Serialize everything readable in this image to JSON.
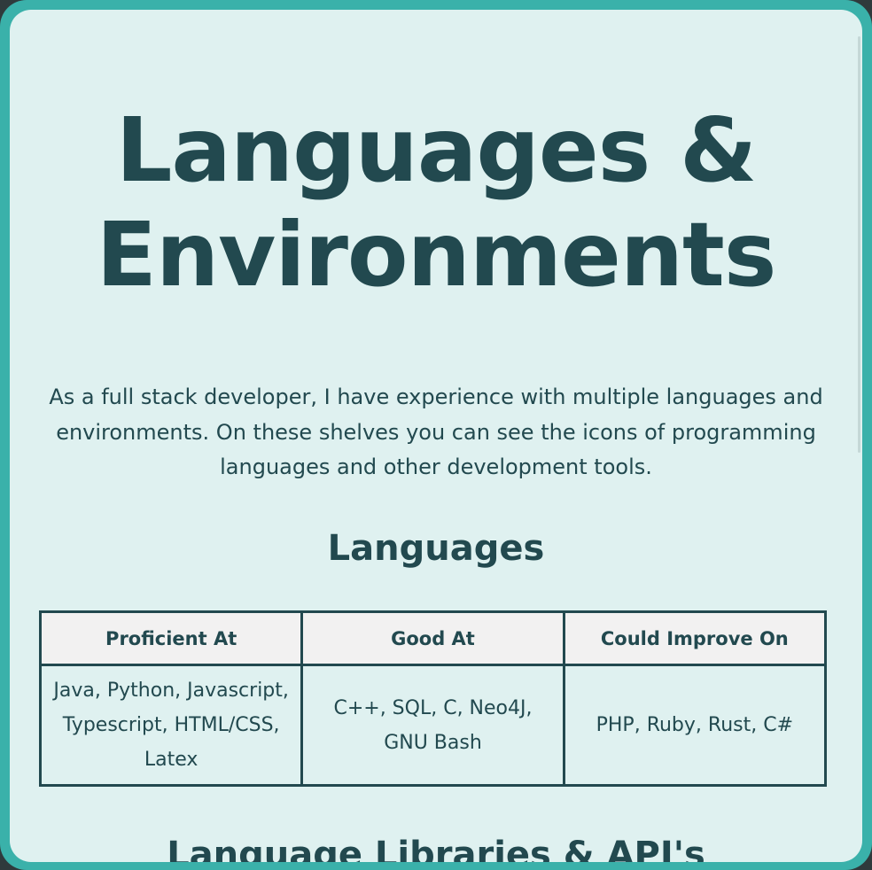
{
  "header": {
    "title": "Languages & Environments"
  },
  "intro": {
    "text": "As a full stack developer, I have experience with multiple languages and environments. On these shelves you can see the icons of programming languages and other development tools."
  },
  "languages_section": {
    "heading": "Languages",
    "table": {
      "columns": [
        "Proficient At",
        "Good At",
        "Could Improve On"
      ],
      "rows": [
        [
          "Java, Python, Javascript, Typescript, HTML/CSS, Latex",
          "C++, SQL, C, Neo4J, GNU Bash",
          "PHP, Ruby, Rust, C#"
        ]
      ]
    }
  },
  "libraries_section": {
    "heading": "Language Libraries & API's"
  },
  "colors": {
    "frame": "#3ab1aa",
    "panel_background": "#dff1f0",
    "text": "#22494f",
    "table_header_background": "#f2f1f1"
  }
}
